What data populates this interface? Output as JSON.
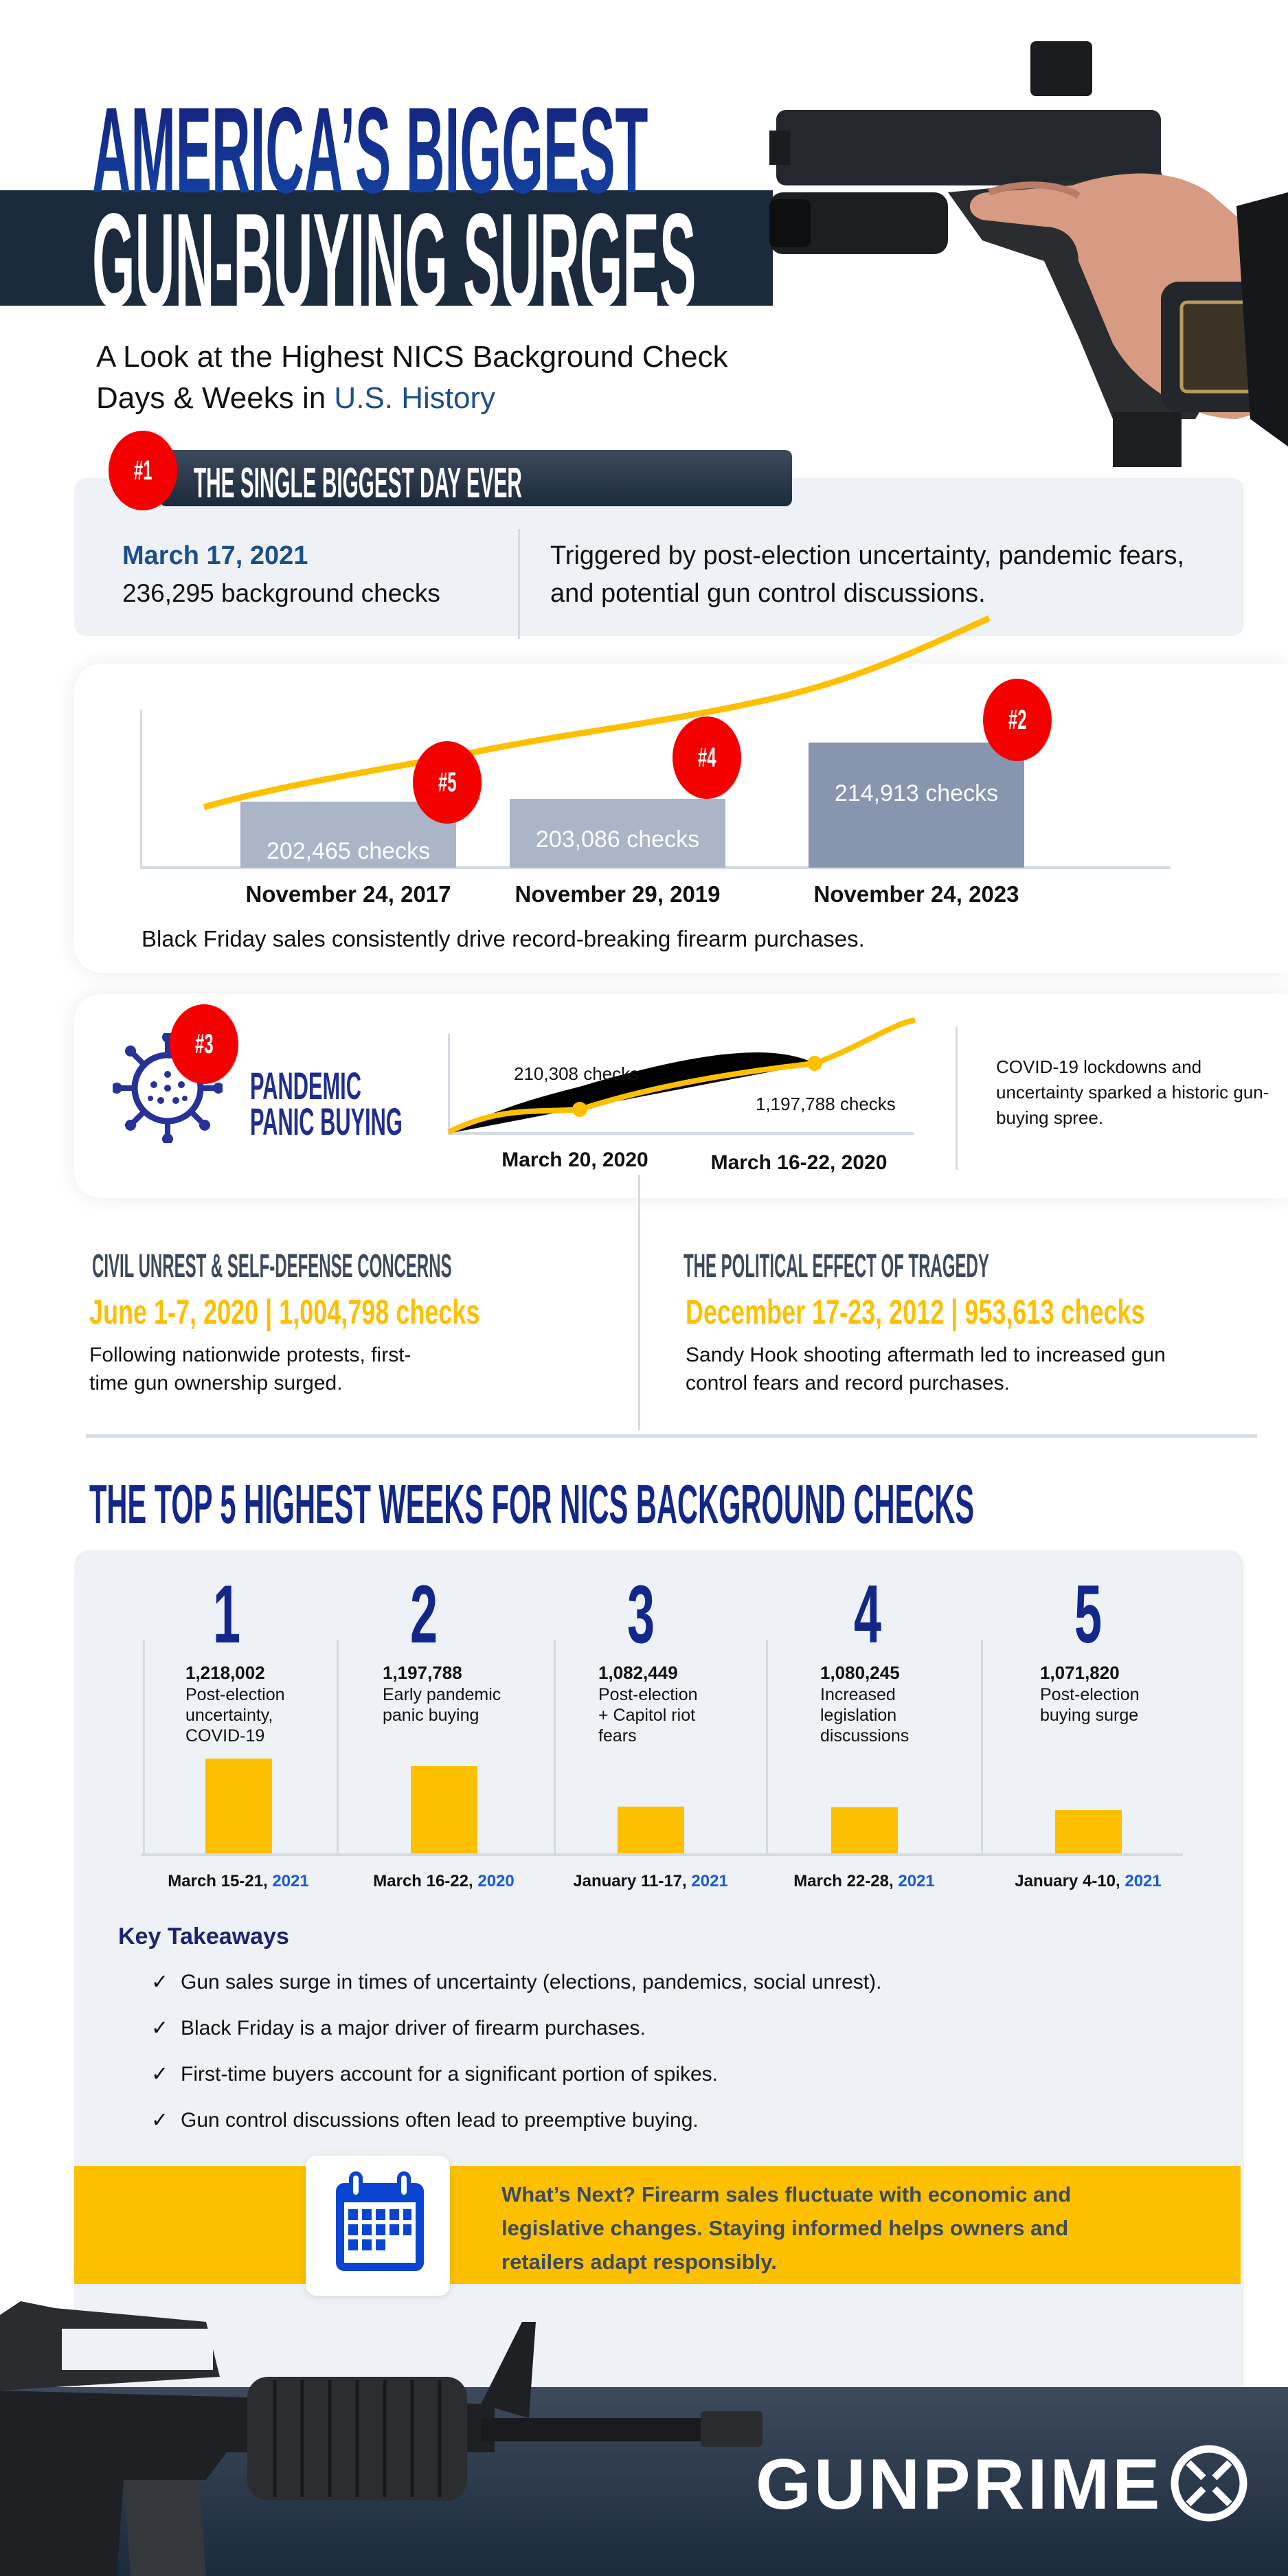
{
  "header": {
    "title_line1": "AMERICA’S BIGGEST",
    "title_line2": "GUN-BUYING SURGES",
    "subtitle_line1": "A Look at the Highest NICS Background Check",
    "subtitle_line2_prefix": "Days & Weeks in ",
    "subtitle_line2_highlight": "U.S. History"
  },
  "biggest_day": {
    "badge": "#1",
    "heading": "THE SINGLE BIGGEST DAY EVER",
    "date": "March 17, 2021",
    "checks": "236,295 background checks",
    "description": "Triggered by post-election uncertainty, pandemic fears, and potential gun control discussions."
  },
  "black_friday": {
    "bars": [
      {
        "badge": "#5",
        "label": "202,465  checks",
        "value": 202465,
        "date": "November 24, 2017"
      },
      {
        "badge": "#4",
        "label": "203,086 checks",
        "value": 203086,
        "date": "November 29, 2019"
      },
      {
        "badge": "#2",
        "label": "214,913 checks",
        "value": 214913,
        "date": "November 24, 2023"
      }
    ],
    "caption": "Black Friday sales consistently drive record-breaking firearm purchases."
  },
  "pandemic": {
    "badge": "#3",
    "title_line1": "PANDEMIC",
    "title_line2": "PANIC BUYING",
    "points": [
      {
        "label": "210,308 checks",
        "date": "March 20, 2020"
      },
      {
        "label": "1,197,788 checks",
        "date": "March 16-22, 2020"
      }
    ],
    "description": "COVID-19 lockdowns and uncertainty sparked a historic gun-buying spree."
  },
  "civil_unrest": {
    "heading": "CIVIL UNREST & SELF-DEFENSE CONCERNS",
    "stat": "June 1-7, 2020 | 1,004,798 checks",
    "line1": "Following nationwide protests, first-",
    "line2": "time gun ownership surged."
  },
  "tragedy": {
    "heading": "THE POLITICAL EFFECT OF TRAGEDY",
    "stat": "December 17-23, 2012 | 953,613 checks",
    "line1": "Sandy Hook shooting aftermath led to increased gun",
    "line2": "control fears and record purchases."
  },
  "top5": {
    "heading": "THE TOP 5 HIGHEST WEEKS FOR NICS BACKGROUND CHECKS",
    "weeks": [
      {
        "rank": "1",
        "value": "1,218,002",
        "checks": 1218002,
        "desc": [
          "Post-election",
          "uncertainty,",
          "COVID-19"
        ],
        "date": "March 15-21, ",
        "year": "2021"
      },
      {
        "rank": "2",
        "value": "1,197,788",
        "checks": 1197788,
        "desc": [
          "Early pandemic",
          "panic buying"
        ],
        "date": "March 16-22, ",
        "year": "2020"
      },
      {
        "rank": "3",
        "value": "1,082,449",
        "checks": 1082449,
        "desc": [
          "Post-election",
          "+ Capitol riot",
          "fears"
        ],
        "date": "January 11-17, ",
        "year": "2021"
      },
      {
        "rank": "4",
        "value": "1,080,245",
        "checks": 1080245,
        "desc": [
          "Increased",
          "legislation",
          "discussions"
        ],
        "date": "March 22-28, ",
        "year": "2021"
      },
      {
        "rank": "5",
        "value": "1,071,820",
        "checks": 1071820,
        "desc": [
          "Post-election",
          "buying surge"
        ],
        "date": "January 4-10, ",
        "year": "2021"
      }
    ]
  },
  "takeaways": {
    "heading": "Key Takeaways",
    "check_glyph": "✓",
    "items": [
      "Gun sales surge in times of uncertainty (elections, pandemics, social unrest).",
      "Black Friday is a major driver of firearm purchases.",
      "First-time buyers account for a significant portion of spikes.",
      "Gun control discussions often lead to preemptive buying."
    ]
  },
  "whats_next": {
    "icon": "calendar-icon",
    "line1": "What’s Next? Firearm sales fluctuate with economic and",
    "line2": "legislative changes. Staying informed helps owners and",
    "line3": "retailers adapt responsibly."
  },
  "footer": {
    "brand": "GUNPRIME"
  },
  "colors": {
    "navy": "#1b2a3d",
    "blue": "#13278a",
    "yellow": "#fcc000",
    "red": "#f50000",
    "light_gray": "#eef1f6"
  }
}
